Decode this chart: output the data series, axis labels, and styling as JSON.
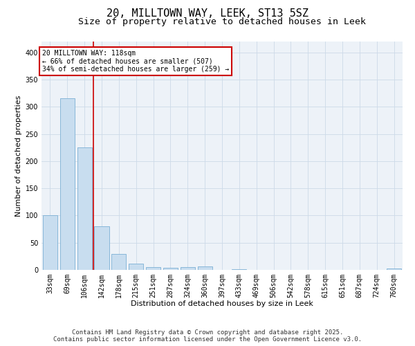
{
  "title1": "20, MILLTOWN WAY, LEEK, ST13 5SZ",
  "title2": "Size of property relative to detached houses in Leek",
  "xlabel": "Distribution of detached houses by size in Leek",
  "ylabel": "Number of detached properties",
  "categories": [
    "33sqm",
    "69sqm",
    "106sqm",
    "142sqm",
    "178sqm",
    "215sqm",
    "251sqm",
    "287sqm",
    "324sqm",
    "360sqm",
    "397sqm",
    "433sqm",
    "469sqm",
    "506sqm",
    "542sqm",
    "578sqm",
    "615sqm",
    "651sqm",
    "687sqm",
    "724sqm",
    "760sqm"
  ],
  "values": [
    100,
    315,
    225,
    80,
    29,
    11,
    5,
    4,
    5,
    6,
    0,
    1,
    0,
    0,
    0,
    0,
    0,
    0,
    0,
    0,
    2
  ],
  "bar_color": "#c8ddef",
  "bar_edge_color": "#7bafd4",
  "grid_color": "#ccdae8",
  "background_color": "#edf2f8",
  "red_line_x": 2.5,
  "annotation_text": "20 MILLTOWN WAY: 118sqm\n← 66% of detached houses are smaller (507)\n34% of semi-detached houses are larger (259) →",
  "annotation_box_color": "#ffffff",
  "annotation_border_color": "#cc0000",
  "ylim": [
    0,
    420
  ],
  "yticks": [
    0,
    50,
    100,
    150,
    200,
    250,
    300,
    350,
    400
  ],
  "footer1": "Contains HM Land Registry data © Crown copyright and database right 2025.",
  "footer2": "Contains public sector information licensed under the Open Government Licence v3.0.",
  "title_fontsize": 11,
  "subtitle_fontsize": 9.5,
  "axis_label_fontsize": 8,
  "tick_fontsize": 7,
  "footer_fontsize": 6.5
}
